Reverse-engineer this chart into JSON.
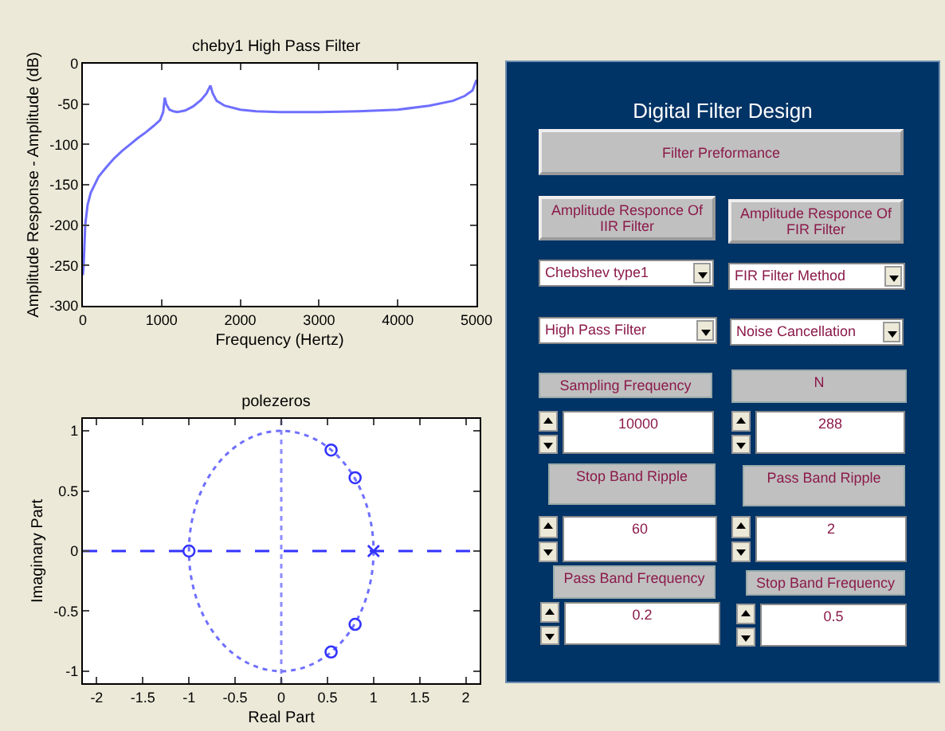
{
  "chart_data": [
    {
      "type": "line",
      "title": "cheby1 High Pass Filter",
      "xlabel": "Frequency (Hertz)",
      "ylabel": "Amplitude Response - Amplitude (dB)",
      "xlim": [
        0,
        5000
      ],
      "xticks": [
        0,
        1000,
        2000,
        3000,
        4000,
        5000
      ],
      "ylim": [
        -300,
        0
      ],
      "yticks": [
        -300,
        -250,
        -200,
        -150,
        -100,
        -50,
        0
      ],
      "x": [
        0,
        10,
        30,
        60,
        100,
        200,
        300,
        400,
        500,
        600,
        700,
        800,
        900,
        980,
        1020,
        1040,
        1060,
        1100,
        1150,
        1200,
        1300,
        1400,
        1500,
        1570,
        1620,
        1650,
        1700,
        1800,
        2000,
        2200,
        2500,
        3000,
        3500,
        4000,
        4400,
        4700,
        4850,
        4950,
        5000
      ],
      "series": [
        {
          "color": "#6f6fff",
          "values": [
            -262,
            -250,
            -200,
            -175,
            -160,
            -140,
            -128,
            -117,
            -108,
            -100,
            -92,
            -85,
            -77,
            -70,
            -60,
            -42,
            -50,
            -57,
            -59,
            -60,
            -58,
            -53,
            -45,
            -37,
            -27,
            -37,
            -46,
            -52,
            -57,
            -59,
            -60,
            -60,
            -59,
            -57,
            -52,
            -46,
            -40,
            -33,
            -20
          ]
        }
      ]
    },
    {
      "type": "scatter",
      "title": "polezeros",
      "xlabel": "Real Part",
      "ylabel": "Imaginary Part",
      "xlim": [
        -2.15,
        2.15
      ],
      "xticks": [
        -2,
        -1.5,
        -1,
        -0.5,
        0,
        0.5,
        1,
        1.5,
        2
      ],
      "ylim": [
        -1.1,
        1.1
      ],
      "yticks": [
        -1,
        -0.5,
        0,
        0.5,
        1
      ],
      "ref_lines": [
        {
          "axis": "x",
          "value": 0,
          "color": "#8c8cff",
          "line_style": "dotted"
        },
        {
          "axis": "y",
          "value": 0,
          "color": "#3333ff",
          "line_style": "dashed"
        }
      ],
      "series": [
        {
          "color": "#3333ff",
          "marker": "circle",
          "x": [
            -1,
            0.54,
            0.8,
            0.8,
            0.54
          ],
          "values": [
            0,
            0.84,
            0.61,
            -0.61,
            -0.84
          ]
        },
        {
          "color": "#3333ff",
          "marker": "cross",
          "x": [
            1
          ],
          "values": [
            0
          ]
        }
      ]
    },
    {
      "type": "other",
      "title": "Digital Filter Design",
      "annotations": [
        "Filter Preformance",
        "Amplitude Responce Of IIR Filter",
        "Amplitude Responce Of FIR Filter",
        "Chebshev type1",
        "FIR Filter Method",
        "High Pass Filter",
        "Noise Cancellation",
        "Sampling Frequency",
        "N",
        "10000",
        "288",
        "Stop Band Ripple",
        "Pass Band Ripple",
        "60",
        "2",
        "Pass Band Frequency",
        "Stop Band Frequency",
        "0.2",
        "0.5"
      ]
    }
  ]
}
